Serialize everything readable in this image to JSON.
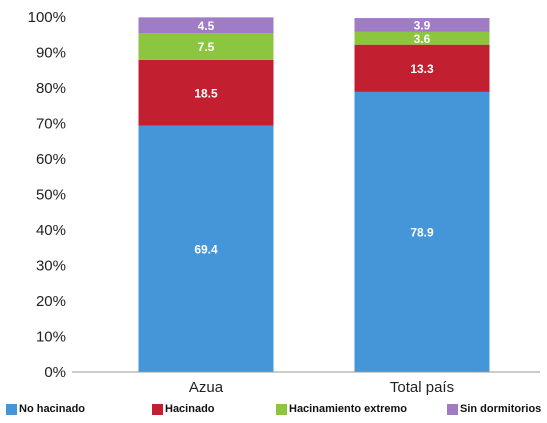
{
  "chart_data": {
    "type": "bar",
    "stacked": true,
    "categories": [
      "Azua",
      "Total país"
    ],
    "series": [
      {
        "name": "No hacinado",
        "color": "#4496D8",
        "values": [
          69.4,
          78.9
        ]
      },
      {
        "name": "Hacinado",
        "color": "#C21F30",
        "values": [
          18.5,
          13.3
        ]
      },
      {
        "name": "Hacinamiento extremo",
        "color": "#8CC63F",
        "values": [
          7.5,
          3.6
        ]
      },
      {
        "name": "Sin dormitorios",
        "color": "#A07CC5",
        "values": [
          4.5,
          3.9
        ]
      }
    ],
    "yticks": [
      "0%",
      "10%",
      "20%",
      "30%",
      "40%",
      "50%",
      "60%",
      "70%",
      "80%",
      "90%",
      "100%"
    ],
    "ylim": [
      0,
      100
    ],
    "grid": false,
    "legend_position": "bottom"
  }
}
